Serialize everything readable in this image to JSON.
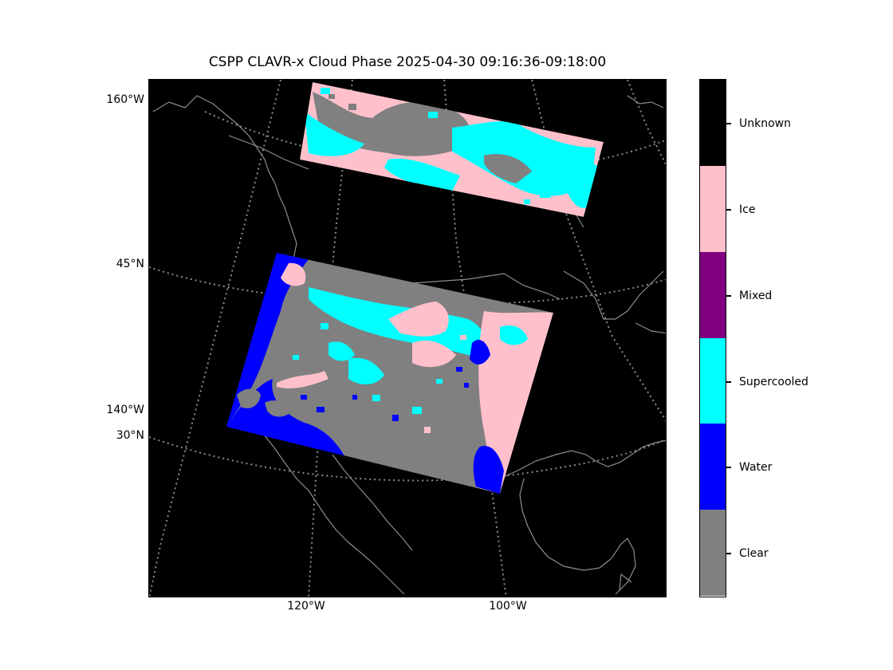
{
  "title": "CSPP CLAVR-x Cloud Phase 2025-04-30 09:16:36-09:18:00",
  "map": {
    "background": "#000000",
    "coastline_color": "#8c8c8c",
    "graticule_color": "#8c8c8c",
    "graticule_style": "dotted",
    "left_labels": [
      "160°W",
      "45°N",
      "140°W",
      "30°N"
    ],
    "bottom_labels": [
      "120°W",
      "100°W"
    ]
  },
  "colorbar": {
    "classes": [
      {
        "label": "Unknown",
        "color": "#000000"
      },
      {
        "label": "Ice",
        "color": "#ffc0cb"
      },
      {
        "label": "Mixed",
        "color": "#800080"
      },
      {
        "label": "Supercooled",
        "color": "#00ffff"
      },
      {
        "label": "Water",
        "color": "#0000ff"
      },
      {
        "label": "Clear",
        "color": "#808080"
      }
    ]
  }
}
